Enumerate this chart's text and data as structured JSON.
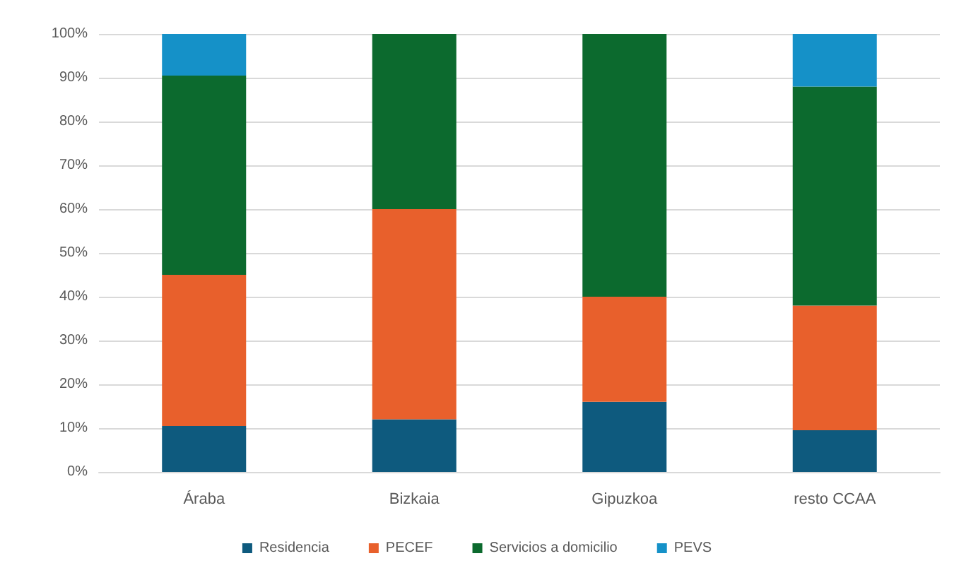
{
  "chart_data": {
    "type": "bar",
    "stacked": true,
    "categories": [
      "Áraba",
      "Bizkaia",
      "Gipuzkoa",
      "resto CCAA"
    ],
    "series": [
      {
        "name": "Residencia",
        "color": "#0e5a7e",
        "values": [
          10.5,
          12,
          16,
          9.5
        ]
      },
      {
        "name": "PECEF",
        "color": "#e8602c",
        "values": [
          34.5,
          48,
          24,
          28.5
        ]
      },
      {
        "name": "Servicios a domicilio",
        "color": "#0c6a2e",
        "values": [
          45.5,
          40,
          60,
          50
        ]
      },
      {
        "name": "PEVS",
        "color": "#1591c8",
        "values": [
          9.5,
          0,
          0,
          12
        ]
      }
    ],
    "ylim": [
      0,
      100
    ],
    "yticks": [
      {
        "value": 0,
        "label": "0%"
      },
      {
        "value": 10,
        "label": "10%"
      },
      {
        "value": 20,
        "label": "20%"
      },
      {
        "value": 30,
        "label": "30%"
      },
      {
        "value": 40,
        "label": "40%"
      },
      {
        "value": 50,
        "label": "50%"
      },
      {
        "value": 60,
        "label": "60%"
      },
      {
        "value": 70,
        "label": "70%"
      },
      {
        "value": 80,
        "label": "80%"
      },
      {
        "value": 90,
        "label": "90%"
      },
      {
        "value": 100,
        "label": "100%"
      }
    ],
    "grid": "y",
    "legend": "bottom"
  }
}
